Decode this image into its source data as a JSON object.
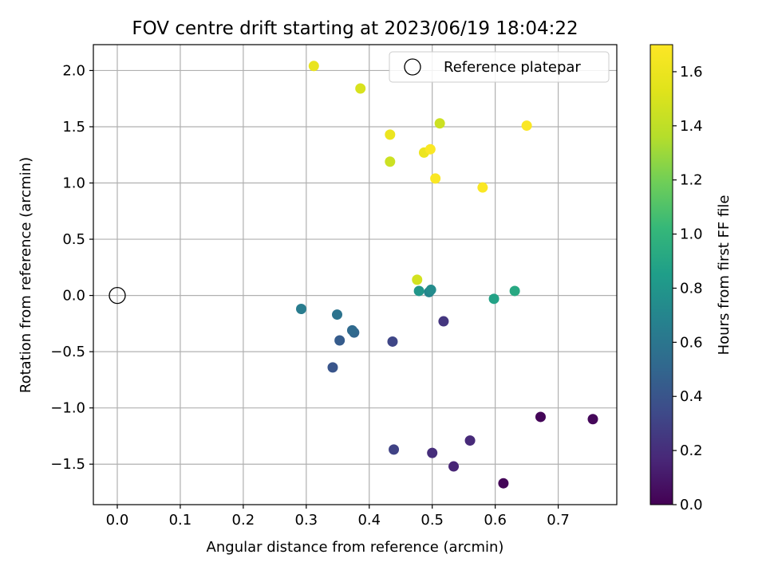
{
  "chart_data": {
    "type": "scatter",
    "title": "FOV centre drift starting at 2023/06/19 18:04:22",
    "xlabel": "Angular distance from reference (arcmin)",
    "ylabel": "Rotation from reference (arcmin)",
    "xlim": [
      -0.038,
      0.793
    ],
    "ylim": [
      -1.86,
      2.23
    ],
    "xticks": [
      "0.0",
      "0.1",
      "0.2",
      "0.3",
      "0.4",
      "0.5",
      "0.6",
      "0.7"
    ],
    "yticks": [
      "2.0",
      "1.5",
      "1.0",
      "0.5",
      "0.0",
      "−0.5",
      "−1.0",
      "−1.5"
    ],
    "grid": true,
    "legend": {
      "placement": "top-right",
      "label": "Reference platepar"
    },
    "reference_point": {
      "x": 0.0,
      "y": 0.0
    },
    "colorbar": {
      "label": "Hours from first FF file",
      "range": [
        0.0,
        1.7
      ],
      "colormap": "viridis",
      "ticks": [
        "0.0",
        "0.2",
        "0.4",
        "0.6",
        "0.8",
        "1.0",
        "1.2",
        "1.4",
        "1.6"
      ]
    },
    "points": [
      {
        "x": 0.613,
        "y": -1.67,
        "t": 0.02
      },
      {
        "x": 0.672,
        "y": -1.08,
        "t": 0.02
      },
      {
        "x": 0.755,
        "y": -1.1,
        "t": 0.03
      },
      {
        "x": 0.534,
        "y": -1.52,
        "t": 0.16
      },
      {
        "x": 0.56,
        "y": -1.29,
        "t": 0.18
      },
      {
        "x": 0.5,
        "y": -1.4,
        "t": 0.2
      },
      {
        "x": 0.518,
        "y": -0.23,
        "t": 0.24
      },
      {
        "x": 0.439,
        "y": -1.37,
        "t": 0.3
      },
      {
        "x": 0.437,
        "y": -0.41,
        "t": 0.32
      },
      {
        "x": 0.342,
        "y": -0.64,
        "t": 0.4
      },
      {
        "x": 0.353,
        "y": -0.4,
        "t": 0.44
      },
      {
        "x": 0.376,
        "y": -0.33,
        "t": 0.5
      },
      {
        "x": 0.373,
        "y": -0.31,
        "t": 0.52
      },
      {
        "x": 0.349,
        "y": -0.17,
        "t": 0.58
      },
      {
        "x": 0.292,
        "y": -0.12,
        "t": 0.64
      },
      {
        "x": 0.495,
        "y": 0.03,
        "t": 0.7
      },
      {
        "x": 0.498,
        "y": 0.05,
        "t": 0.74
      },
      {
        "x": 0.479,
        "y": 0.04,
        "t": 0.8
      },
      {
        "x": 0.598,
        "y": -0.03,
        "t": 0.88
      },
      {
        "x": 0.631,
        "y": 0.04,
        "t": 0.92
      },
      {
        "x": 0.476,
        "y": 0.14,
        "t": 1.48
      },
      {
        "x": 0.433,
        "y": 1.19,
        "t": 1.45
      },
      {
        "x": 0.512,
        "y": 1.53,
        "t": 1.45
      },
      {
        "x": 0.386,
        "y": 1.84,
        "t": 1.5
      },
      {
        "x": 0.312,
        "y": 2.04,
        "t": 1.58
      },
      {
        "x": 0.433,
        "y": 1.43,
        "t": 1.6
      },
      {
        "x": 0.487,
        "y": 1.27,
        "t": 1.6
      },
      {
        "x": 0.497,
        "y": 1.3,
        "t": 1.68
      },
      {
        "x": 0.505,
        "y": 1.04,
        "t": 1.68
      },
      {
        "x": 0.58,
        "y": 0.96,
        "t": 1.68
      },
      {
        "x": 0.65,
        "y": 1.51,
        "t": 1.68
      }
    ]
  }
}
